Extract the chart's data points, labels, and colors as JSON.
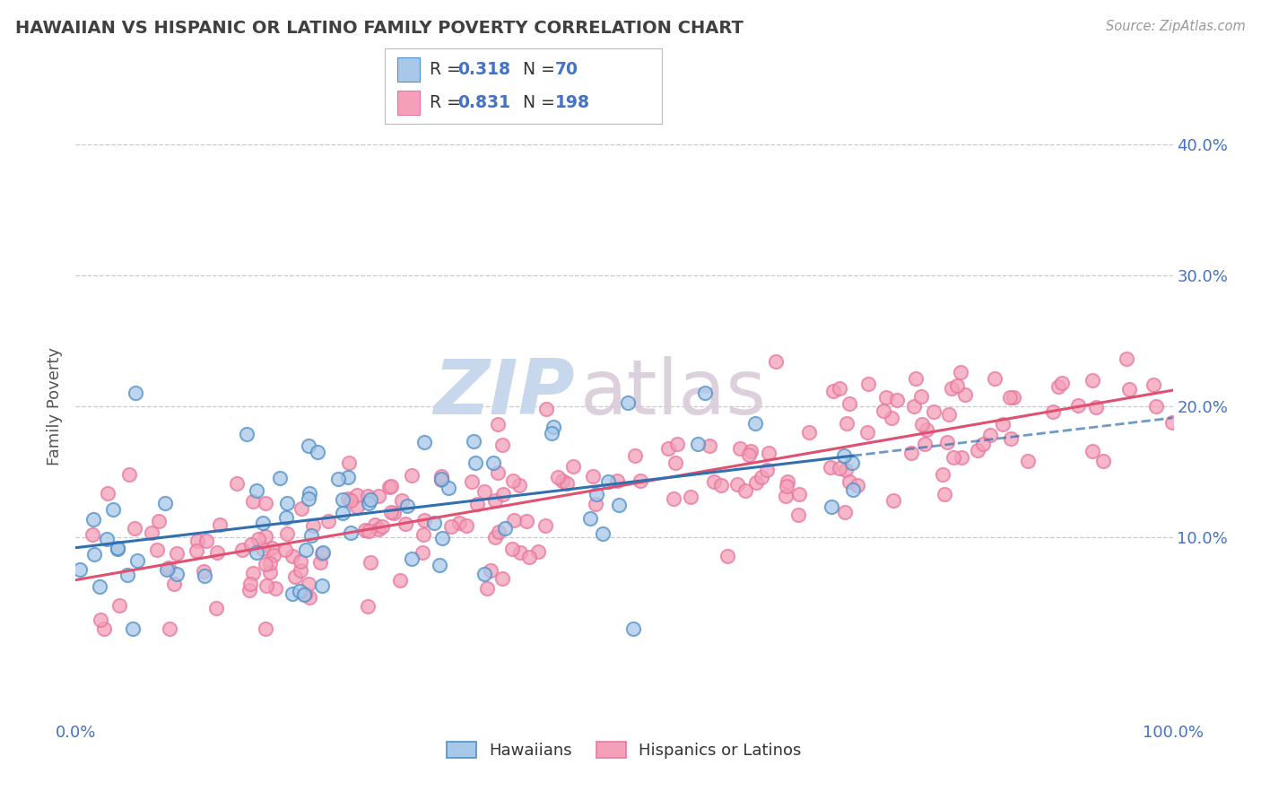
{
  "title": "HAWAIIAN VS HISPANIC OR LATINO FAMILY POVERTY CORRELATION CHART",
  "source_text": "Source: ZipAtlas.com",
  "ylabel": "Family Poverty",
  "xlim": [
    0.0,
    1.0
  ],
  "ylim": [
    -0.04,
    0.44
  ],
  "x_tick_labels": [
    "0.0%",
    "100.0%"
  ],
  "y_tick_labels": [
    "10.0%",
    "20.0%",
    "30.0%",
    "40.0%"
  ],
  "y_tick_positions": [
    0.1,
    0.2,
    0.3,
    0.4
  ],
  "watermark_zip": "ZIP",
  "watermark_atlas": "atlas",
  "legend_r1": "R = 0.318",
  "legend_n1": "N =  70",
  "legend_r2": "R = 0.831",
  "legend_n2": "N = 198",
  "hawaiian_color": "#a8c8e8",
  "hispanic_color": "#f4a0b8",
  "hawaiian_line_color": "#3070b0",
  "hispanic_line_color": "#e05070",
  "background_color": "#ffffff",
  "grid_color": "#c8c8d8",
  "title_color": "#404040",
  "legend_text_color": "#4472c4",
  "axis_label_color": "#4472c4",
  "hawaiian_R": 0.318,
  "hispanic_R": 0.831,
  "hawaiian_N": 70,
  "hispanic_N": 198,
  "dot_size": 120,
  "dot_linewidth": 1.5,
  "hawaiian_edgecolor": "#5090c8",
  "hispanic_edgecolor": "#e878a0"
}
